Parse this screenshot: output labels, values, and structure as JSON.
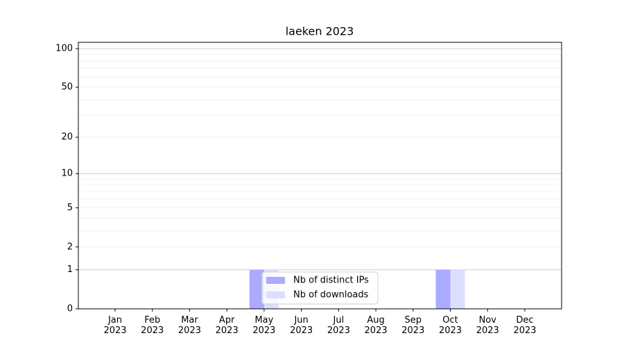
{
  "chart_data": {
    "type": "bar",
    "title": "laeken 2023",
    "categories": [
      "Jan 2023",
      "Feb 2023",
      "Mar 2023",
      "Apr 2023",
      "May 2023",
      "Jun 2023",
      "Jul 2023",
      "Aug 2023",
      "Sep 2023",
      "Oct 2023",
      "Nov 2023",
      "Dec 2023"
    ],
    "series": [
      {
        "name": "Nb of distinct IPs",
        "color": "#aaaaff",
        "values": [
          0,
          0,
          0,
          0,
          1,
          0,
          0,
          0,
          0,
          1,
          0,
          0
        ]
      },
      {
        "name": "Nb of downloads",
        "color": "#ddddff",
        "values": [
          0,
          0,
          0,
          0,
          1,
          0,
          0,
          0,
          0,
          1,
          0,
          0
        ]
      }
    ],
    "yscale": "log1p",
    "ylim": [
      0,
      112
    ],
    "yticks": [
      0,
      1,
      2,
      5,
      10,
      20,
      50,
      100
    ],
    "ygrid_major": [
      1,
      10,
      100
    ],
    "ygrid_minor": [
      2,
      3,
      4,
      5,
      6,
      7,
      8,
      9,
      20,
      30,
      40,
      50,
      60,
      70,
      80,
      90
    ],
    "legend": "lower center"
  }
}
